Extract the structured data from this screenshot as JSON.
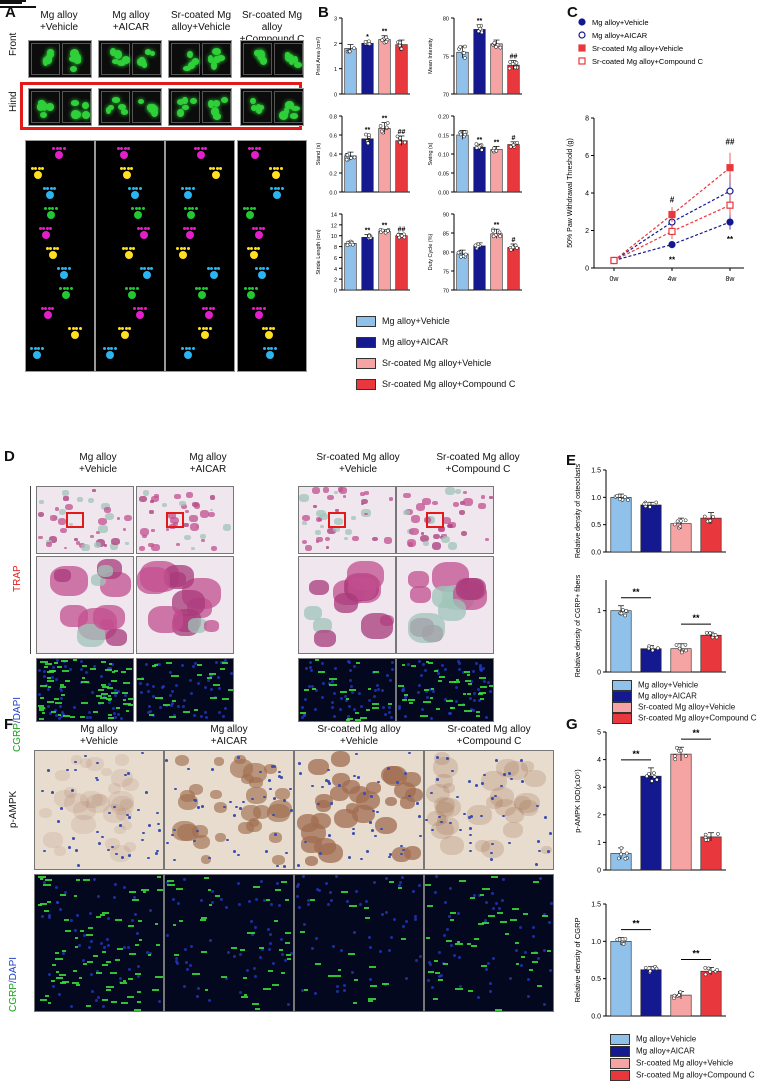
{
  "colors": {
    "vehicle": "#8fc1ea",
    "aicar": "#14198f",
    "sr_vehicle": "#f6a3a3",
    "compound_c": "#e8383d",
    "trap_bg": "#efe6ee",
    "ihc_bg": "#e8dccf",
    "fluor_bg": "#04081e"
  },
  "panels": {
    "A": "A",
    "B": "B",
    "C": "C",
    "D": "D",
    "E": "E",
    "F": "F",
    "G": "G"
  },
  "panelA": {
    "columns": [
      "Mg alloy\n+Vehicle",
      "Mg alloy\n+AICAR",
      "Sr-coated Mg\nalloy+Vehicle",
      "Sr-coated Mg alloy\n+Compound C"
    ],
    "row_front": "Front",
    "row_hind": "Hind"
  },
  "legendB": [
    "Mg alloy+Vehicle",
    "Mg alloy+AICAR",
    "Sr-coated Mg alloy+Vehicle",
    "Sr-coated Mg alloy+Compound C"
  ],
  "panelD": {
    "columns": [
      "Mg alloy\n+Vehicle",
      "Mg alloy\n+AICAR",
      "Sr-coated Mg alloy\n+Vehicle",
      "Sr-coated Mg alloy\n+Compound C"
    ],
    "row_trap": "TRAP",
    "row_cgrp_a": "CGRP",
    "row_cgrp_b": "/DAPI"
  },
  "panelF": {
    "columns": [
      "Mg alloy\n+Vehicle",
      "Mg alloy\n+AICAR",
      "Sr-coated Mg alloy\n+Vehicle",
      "Sr-coated Mg alloy\n+Compound C"
    ],
    "row_pampk": "p-AMPK",
    "row_cgrp_a": "CGRP",
    "row_cgrp_b": "/DAPI"
  },
  "legendE": [
    "Mg alloy+Vehicle",
    "Mg alloy+AICAR",
    "Sr-coated Mg alloy+Vehicle",
    "Sr-coated Mg alloy+Compound C"
  ],
  "legendG": [
    "Mg alloy+Vehicle",
    "Mg alloy+AICAR",
    "Sr-coated Mg alloy+Vehicle",
    "Sr-coated Mg alloy+Compound C"
  ],
  "chart_data": [
    {
      "id": "B1",
      "type": "bar",
      "ylabel": "Print Area (cm²)",
      "ylim": [
        0,
        3
      ],
      "yticks": [
        "0",
        "1",
        "2",
        "3"
      ],
      "values": [
        1.8,
        2.0,
        2.15,
        1.95
      ],
      "errors": [
        0.15,
        0.1,
        0.15,
        0.18
      ],
      "marks": [
        "",
        "*",
        "**",
        ""
      ]
    },
    {
      "id": "B2",
      "type": "bar",
      "ylabel": "Mean Intensity",
      "ylim": [
        70,
        80
      ],
      "yticks": [
        "70",
        "75",
        "80"
      ],
      "values": [
        75.5,
        78.5,
        76.6,
        73.8
      ],
      "errors": [
        0.8,
        0.6,
        0.5,
        0.6
      ],
      "marks": [
        "",
        "**",
        "",
        "##"
      ]
    },
    {
      "id": "B3",
      "type": "bar",
      "ylabel": "Stand (s)",
      "ylim": [
        0,
        0.8
      ],
      "yticks": [
        "0.0",
        "0.2",
        "0.4",
        "0.6",
        "0.8"
      ],
      "values": [
        0.38,
        0.56,
        0.67,
        0.54
      ],
      "errors": [
        0.04,
        0.05,
        0.06,
        0.05
      ],
      "marks": [
        "",
        "**",
        "**",
        "##"
      ]
    },
    {
      "id": "B4",
      "type": "bar",
      "ylabel": "Swing (s)",
      "ylim": [
        0,
        0.2
      ],
      "yticks": [
        "0.00",
        "0.05",
        "0.10",
        "0.15",
        "0.20"
      ],
      "values": [
        0.15,
        0.118,
        0.112,
        0.125
      ],
      "errors": [
        0.012,
        0.008,
        0.008,
        0.007
      ],
      "marks": [
        "",
        "**",
        "**",
        "#"
      ]
    },
    {
      "id": "B5",
      "type": "bar",
      "ylabel": "Stride Length (cm)",
      "ylim": [
        0,
        14
      ],
      "yticks": [
        "0",
        "2",
        "4",
        "6",
        "8",
        "10",
        "12",
        "14"
      ],
      "values": [
        8.6,
        9.7,
        10.8,
        10.0
      ],
      "errors": [
        0.4,
        0.5,
        0.3,
        0.4
      ],
      "marks": [
        "",
        "**",
        "**",
        "##"
      ]
    },
    {
      "id": "B6",
      "type": "bar",
      "ylabel": "Duty Cycle (%)",
      "ylim": [
        70,
        90
      ],
      "yticks": [
        "70",
        "75",
        "80",
        "85",
        "90"
      ],
      "values": [
        79.5,
        81.6,
        84.8,
        81.2
      ],
      "errors": [
        1.0,
        0.8,
        1.2,
        0.9
      ],
      "marks": [
        "",
        "",
        "**",
        "#"
      ]
    },
    {
      "id": "C",
      "type": "line",
      "ylabel": "50% Paw Withdrawal Threshold (g)",
      "ylim": [
        0,
        8
      ],
      "yticks": [
        "0",
        "2",
        "4",
        "6",
        "8"
      ],
      "x": [
        "0w",
        "4w",
        "8w"
      ],
      "series": [
        {
          "name": "Mg alloy+Vehicle",
          "values": [
            0.4,
            1.25,
            2.45
          ],
          "errors": [
            0,
            0.2,
            0.4
          ],
          "marker": "filled-circle"
        },
        {
          "name": "Mg alloy+AICAR",
          "values": [
            0.4,
            2.45,
            4.1
          ],
          "errors": [
            0,
            0.4,
            0.9
          ],
          "marker": "open-circle"
        },
        {
          "name": "Sr-coated Mg alloy+Vehicle",
          "values": [
            0.4,
            2.85,
            5.35
          ],
          "errors": [
            0,
            0.4,
            0.8
          ],
          "marker": "filled-square"
        },
        {
          "name": "Sr-coated Mg alloy+Compound C",
          "values": [
            0.4,
            1.95,
            3.35
          ],
          "errors": [
            0,
            0.4,
            0.6
          ],
          "marker": "open-square"
        }
      ],
      "annotations": [
        {
          "x": "4w",
          "text": "#"
        },
        {
          "x": "4w",
          "text": "**"
        },
        {
          "x": "8w",
          "text": "##"
        },
        {
          "x": "8w",
          "text": "**"
        }
      ]
    },
    {
      "id": "E1",
      "type": "bar",
      "ylabel": "Relative density of osteoclasts",
      "ylim": [
        0,
        1.5
      ],
      "yticks": [
        "0.0",
        "0.5",
        "1.0",
        "1.5"
      ],
      "values": [
        1.0,
        0.86,
        0.52,
        0.62
      ],
      "errors": [
        0.06,
        0.05,
        0.1,
        0.1
      ],
      "marks": [
        "",
        "",
        "",
        ""
      ]
    },
    {
      "id": "E2",
      "type": "bar",
      "ylabel": "Relative density of CGRP+ fibers",
      "ylim": [
        0,
        1.5
      ],
      "yticks": [
        "0",
        "1"
      ],
      "values": [
        1.0,
        0.38,
        0.38,
        0.6
      ],
      "errors": [
        0.08,
        0.05,
        0.08,
        0.05
      ],
      "brackets": [
        {
          "from": 0,
          "to": 1,
          "text": "**"
        },
        {
          "from": 2,
          "to": 3,
          "text": "**"
        }
      ]
    },
    {
      "id": "G1",
      "type": "bar",
      "ylabel": "p-AMPK IOD(x10⁵)",
      "ylim": [
        0,
        5
      ],
      "yticks": [
        "0",
        "1",
        "2",
        "3",
        "4",
        "5"
      ],
      "values": [
        0.6,
        3.4,
        4.2,
        1.2
      ],
      "errors": [
        0.2,
        0.3,
        0.25,
        0.15
      ],
      "brackets": [
        {
          "from": 0,
          "to": 1,
          "text": "**"
        },
        {
          "from": 2,
          "to": 3,
          "text": "**"
        }
      ]
    },
    {
      "id": "G2",
      "type": "bar",
      "ylabel": "Relative density of CGRP",
      "ylim": [
        0,
        1.5
      ],
      "yticks": [
        "0.0",
        "0.5",
        "1.0",
        "1.5"
      ],
      "values": [
        1.0,
        0.62,
        0.28,
        0.6
      ],
      "errors": [
        0.05,
        0.04,
        0.05,
        0.05
      ],
      "brackets": [
        {
          "from": 0,
          "to": 1,
          "text": "**"
        },
        {
          "from": 2,
          "to": 3,
          "text": "**"
        }
      ]
    }
  ]
}
